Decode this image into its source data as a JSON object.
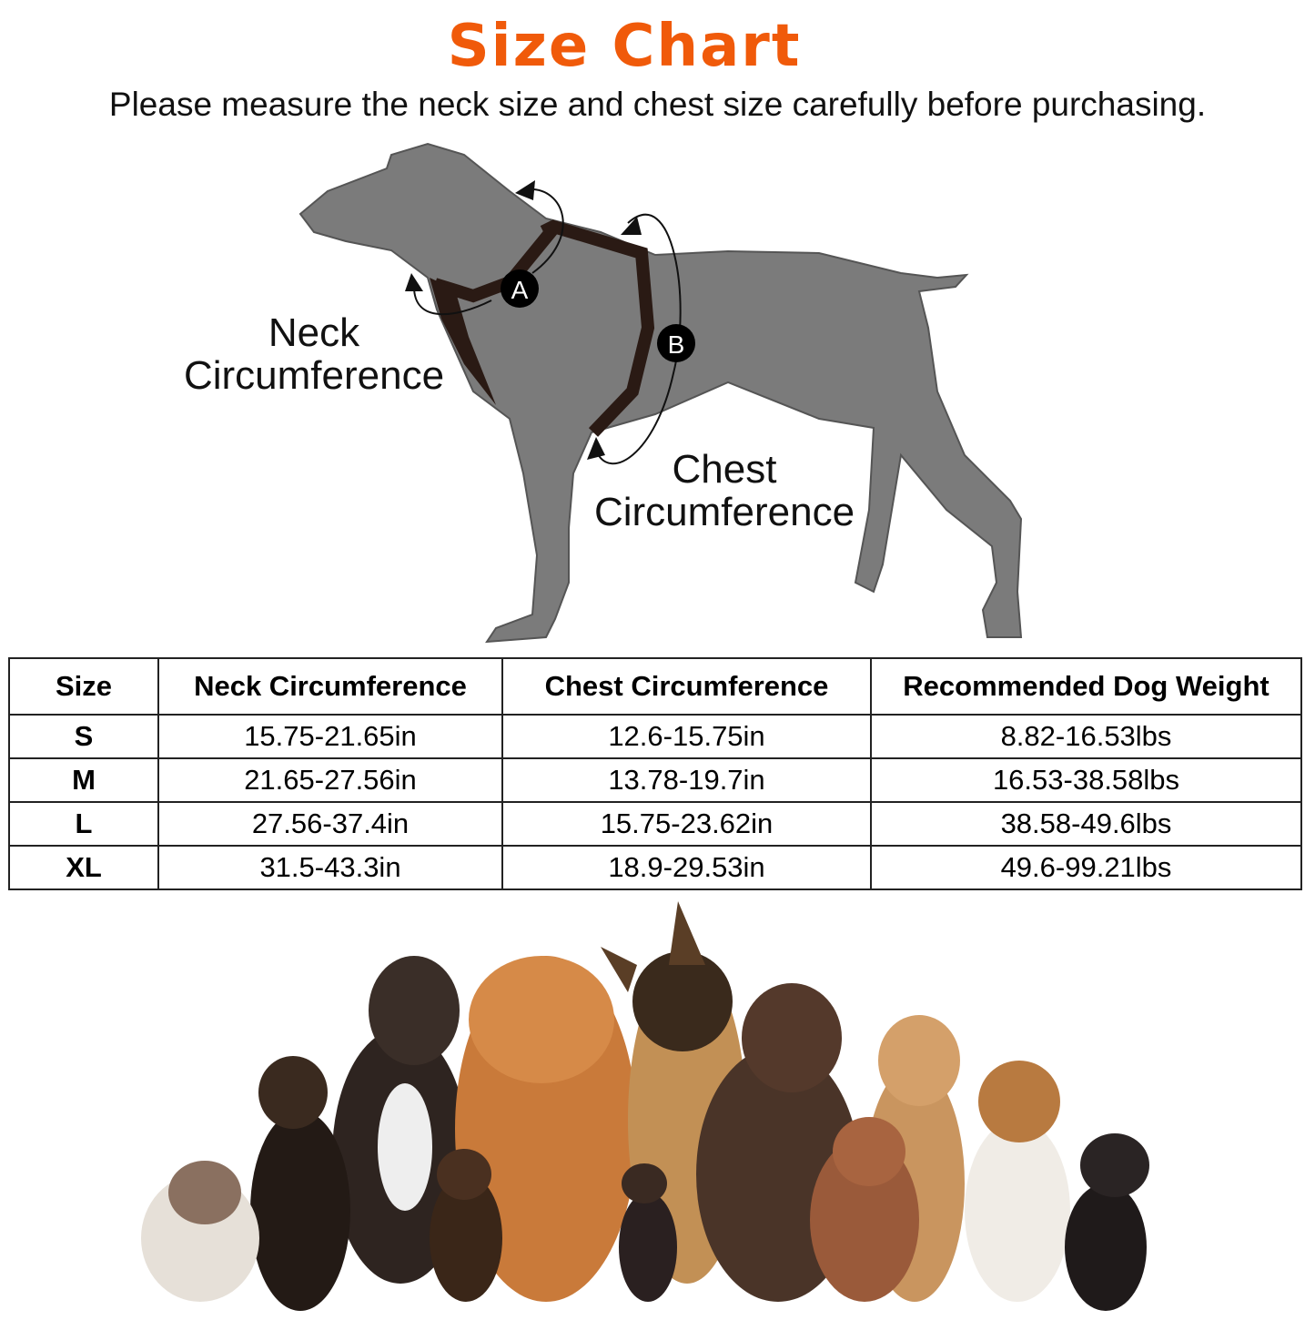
{
  "header": {
    "title": "Size Chart",
    "subtitle": "Please measure the neck size and chest size carefully before purchasing."
  },
  "diagram": {
    "neck_label": [
      "Neck",
      "Circumference"
    ],
    "chest_label": [
      "Chest",
      "Circumference"
    ],
    "marker_a": "A",
    "marker_b": "B"
  },
  "table": {
    "headers": [
      "Size",
      "Neck Circumference",
      "Chest Circumference",
      "Recommended Dog Weight"
    ],
    "rows": [
      [
        "S",
        "15.75-21.65in",
        "12.6-15.75in",
        "8.82-16.53lbs"
      ],
      [
        "M",
        "21.65-27.56in",
        "13.78-19.7in",
        "16.53-38.58lbs"
      ],
      [
        "L",
        "27.56-37.4in",
        "15.75-23.62in",
        "38.58-49.6lbs"
      ],
      [
        "XL",
        "31.5-43.3in",
        "18.9-29.53in",
        "49.6-99.21lbs"
      ]
    ]
  },
  "colors": {
    "title": "#f05a0a",
    "dog_silhouette": "#7b7b7b",
    "harness": "#2a1a14"
  }
}
